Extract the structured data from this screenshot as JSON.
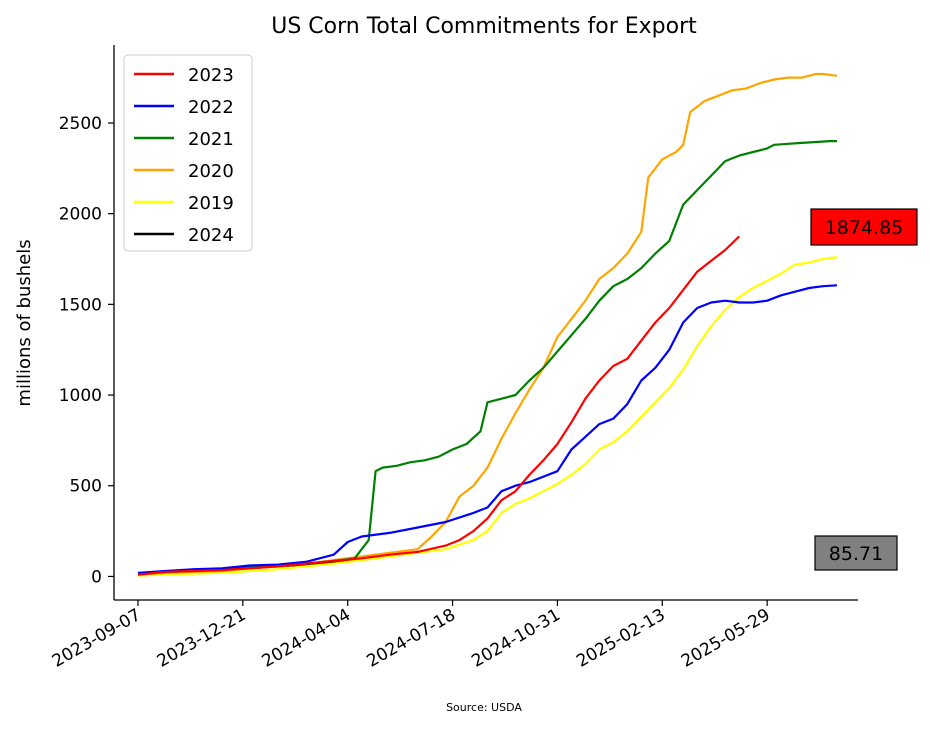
{
  "chart_data": {
    "type": "line",
    "title": "US Corn Total Commitments for Export",
    "xlabel": "",
    "ylabel": "millions of bushels",
    "source": "Source: USDA",
    "x_ticks": [
      "2023-09-07",
      "2023-12-21",
      "2024-04-04",
      "2024-07-18",
      "2024-10-31",
      "2025-02-13",
      "2025-05-29"
    ],
    "y_ticks": [
      0,
      500,
      1000,
      1500,
      2000,
      2500
    ],
    "xlim": [
      "2023-08-14",
      "2025-08-28"
    ],
    "ylim": [
      -130,
      2930
    ],
    "grid": false,
    "legend_position": "top-left",
    "series": [
      {
        "name": "2023",
        "color": "#ff0000",
        "points": [
          [
            "2023-09-07",
            10
          ],
          [
            "2023-10-05",
            25
          ],
          [
            "2023-11-02",
            30
          ],
          [
            "2023-11-30",
            35
          ],
          [
            "2023-12-28",
            45
          ],
          [
            "2024-01-25",
            55
          ],
          [
            "2024-02-22",
            70
          ],
          [
            "2024-03-21",
            85
          ],
          [
            "2024-04-18",
            100
          ],
          [
            "2024-05-16",
            120
          ],
          [
            "2024-06-13",
            135
          ],
          [
            "2024-07-11",
            170
          ],
          [
            "2024-07-25",
            200
          ],
          [
            "2024-08-08",
            250
          ],
          [
            "2024-08-22",
            320
          ],
          [
            "2024-09-05",
            420
          ],
          [
            "2024-09-19",
            470
          ],
          [
            "2024-10-03",
            560
          ],
          [
            "2024-10-17",
            640
          ],
          [
            "2024-10-31",
            730
          ],
          [
            "2024-11-14",
            850
          ],
          [
            "2024-11-28",
            980
          ],
          [
            "2024-12-12",
            1080
          ],
          [
            "2024-12-26",
            1160
          ],
          [
            "2025-01-09",
            1200
          ],
          [
            "2025-01-23",
            1300
          ],
          [
            "2025-02-06",
            1400
          ],
          [
            "2025-02-20",
            1480
          ],
          [
            "2025-03-06",
            1580
          ],
          [
            "2025-03-20",
            1680
          ],
          [
            "2025-04-03",
            1740
          ],
          [
            "2025-04-17",
            1800
          ],
          [
            "2025-05-01",
            1874.85
          ]
        ]
      },
      {
        "name": "2022",
        "color": "#0000ff",
        "points": [
          [
            "2023-09-07",
            20
          ],
          [
            "2023-10-05",
            30
          ],
          [
            "2023-11-02",
            40
          ],
          [
            "2023-11-30",
            45
          ],
          [
            "2023-12-28",
            60
          ],
          [
            "2024-01-25",
            65
          ],
          [
            "2024-02-22",
            80
          ],
          [
            "2024-03-21",
            120
          ],
          [
            "2024-04-04",
            190
          ],
          [
            "2024-04-18",
            220
          ],
          [
            "2024-05-16",
            240
          ],
          [
            "2024-06-13",
            270
          ],
          [
            "2024-07-11",
            300
          ],
          [
            "2024-08-08",
            350
          ],
          [
            "2024-08-22",
            380
          ],
          [
            "2024-09-05",
            470
          ],
          [
            "2024-09-19",
            500
          ],
          [
            "2024-10-03",
            520
          ],
          [
            "2024-10-31",
            580
          ],
          [
            "2024-11-14",
            700
          ],
          [
            "2024-11-28",
            770
          ],
          [
            "2024-12-12",
            840
          ],
          [
            "2024-12-26",
            870
          ],
          [
            "2025-01-09",
            950
          ],
          [
            "2025-01-23",
            1080
          ],
          [
            "2025-02-06",
            1150
          ],
          [
            "2025-02-20",
            1250
          ],
          [
            "2025-03-06",
            1400
          ],
          [
            "2025-03-20",
            1480
          ],
          [
            "2025-04-03",
            1510
          ],
          [
            "2025-04-17",
            1520
          ],
          [
            "2025-05-01",
            1510
          ],
          [
            "2025-05-15",
            1510
          ],
          [
            "2025-05-29",
            1520
          ],
          [
            "2025-06-12",
            1550
          ],
          [
            "2025-06-26",
            1570
          ],
          [
            "2025-07-10",
            1590
          ],
          [
            "2025-07-24",
            1600
          ],
          [
            "2025-08-07",
            1605
          ]
        ]
      },
      {
        "name": "2021",
        "color": "#008000",
        "points": [
          [
            "2023-09-07",
            15
          ],
          [
            "2023-10-05",
            25
          ],
          [
            "2023-11-02",
            30
          ],
          [
            "2023-11-30",
            40
          ],
          [
            "2023-12-28",
            50
          ],
          [
            "2024-01-25",
            60
          ],
          [
            "2024-02-22",
            70
          ],
          [
            "2024-03-21",
            85
          ],
          [
            "2024-04-11",
            100
          ],
          [
            "2024-04-25",
            200
          ],
          [
            "2024-05-02",
            580
          ],
          [
            "2024-05-09",
            600
          ],
          [
            "2024-05-23",
            610
          ],
          [
            "2024-06-06",
            630
          ],
          [
            "2024-06-20",
            640
          ],
          [
            "2024-07-04",
            660
          ],
          [
            "2024-07-18",
            700
          ],
          [
            "2024-08-01",
            730
          ],
          [
            "2024-08-15",
            800
          ],
          [
            "2024-08-22",
            960
          ],
          [
            "2024-09-05",
            980
          ],
          [
            "2024-09-19",
            1000
          ],
          [
            "2024-10-03",
            1080
          ],
          [
            "2024-10-17",
            1150
          ],
          [
            "2024-10-31",
            1240
          ],
          [
            "2024-11-14",
            1330
          ],
          [
            "2024-11-28",
            1420
          ],
          [
            "2024-12-12",
            1520
          ],
          [
            "2024-12-26",
            1600
          ],
          [
            "2025-01-09",
            1640
          ],
          [
            "2025-01-23",
            1700
          ],
          [
            "2025-02-06",
            1780
          ],
          [
            "2025-02-20",
            1850
          ],
          [
            "2025-03-06",
            2050
          ],
          [
            "2025-03-20",
            2130
          ],
          [
            "2025-04-03",
            2210
          ],
          [
            "2025-04-17",
            2290
          ],
          [
            "2025-05-01",
            2320
          ],
          [
            "2025-05-15",
            2340
          ],
          [
            "2025-05-29",
            2360
          ],
          [
            "2025-06-05",
            2380
          ],
          [
            "2025-06-19",
            2385
          ],
          [
            "2025-07-03",
            2390
          ],
          [
            "2025-07-17",
            2395
          ],
          [
            "2025-07-31",
            2400
          ],
          [
            "2025-08-07",
            2400
          ]
        ]
      },
      {
        "name": "2020",
        "color": "#ffa500",
        "points": [
          [
            "2023-09-07",
            10
          ],
          [
            "2023-10-05",
            20
          ],
          [
            "2023-11-02",
            25
          ],
          [
            "2023-11-30",
            30
          ],
          [
            "2023-12-28",
            45
          ],
          [
            "2024-01-25",
            55
          ],
          [
            "2024-02-22",
            70
          ],
          [
            "2024-03-21",
            90
          ],
          [
            "2024-04-18",
            110
          ],
          [
            "2024-05-16",
            130
          ],
          [
            "2024-06-13",
            150
          ],
          [
            "2024-06-27",
            220
          ],
          [
            "2024-07-11",
            300
          ],
          [
            "2024-07-25",
            440
          ],
          [
            "2024-08-08",
            500
          ],
          [
            "2024-08-22",
            600
          ],
          [
            "2024-09-05",
            760
          ],
          [
            "2024-09-19",
            900
          ],
          [
            "2024-10-03",
            1030
          ],
          [
            "2024-10-17",
            1150
          ],
          [
            "2024-10-31",
            1320
          ],
          [
            "2024-11-14",
            1420
          ],
          [
            "2024-11-28",
            1520
          ],
          [
            "2024-12-12",
            1640
          ],
          [
            "2024-12-26",
            1700
          ],
          [
            "2025-01-09",
            1780
          ],
          [
            "2025-01-23",
            1900
          ],
          [
            "2025-01-30",
            2200
          ],
          [
            "2025-02-13",
            2300
          ],
          [
            "2025-02-27",
            2340
          ],
          [
            "2025-03-06",
            2380
          ],
          [
            "2025-03-13",
            2560
          ],
          [
            "2025-03-27",
            2620
          ],
          [
            "2025-04-10",
            2650
          ],
          [
            "2025-04-24",
            2680
          ],
          [
            "2025-05-08",
            2690
          ],
          [
            "2025-05-22",
            2720
          ],
          [
            "2025-06-05",
            2740
          ],
          [
            "2025-06-19",
            2750
          ],
          [
            "2025-07-03",
            2750
          ],
          [
            "2025-07-17",
            2770
          ],
          [
            "2025-07-24",
            2770
          ],
          [
            "2025-08-07",
            2760
          ]
        ]
      },
      {
        "name": "2019",
        "color": "#ffff00",
        "points": [
          [
            "2023-09-07",
            5
          ],
          [
            "2023-10-05",
            10
          ],
          [
            "2023-11-02",
            15
          ],
          [
            "2023-11-30",
            20
          ],
          [
            "2023-12-28",
            30
          ],
          [
            "2024-01-25",
            40
          ],
          [
            "2024-02-22",
            55
          ],
          [
            "2024-03-21",
            70
          ],
          [
            "2024-04-18",
            90
          ],
          [
            "2024-05-16",
            110
          ],
          [
            "2024-06-13",
            130
          ],
          [
            "2024-07-11",
            150
          ],
          [
            "2024-08-08",
            200
          ],
          [
            "2024-08-22",
            250
          ],
          [
            "2024-09-05",
            350
          ],
          [
            "2024-09-19",
            400
          ],
          [
            "2024-10-03",
            430
          ],
          [
            "2024-10-17",
            470
          ],
          [
            "2024-10-31",
            510
          ],
          [
            "2024-11-14",
            560
          ],
          [
            "2024-11-28",
            620
          ],
          [
            "2024-12-12",
            700
          ],
          [
            "2024-12-26",
            740
          ],
          [
            "2025-01-09",
            800
          ],
          [
            "2025-01-23",
            880
          ],
          [
            "2025-02-06",
            960
          ],
          [
            "2025-02-20",
            1040
          ],
          [
            "2025-03-06",
            1140
          ],
          [
            "2025-03-20",
            1270
          ],
          [
            "2025-04-03",
            1380
          ],
          [
            "2025-04-17",
            1470
          ],
          [
            "2025-05-01",
            1540
          ],
          [
            "2025-05-15",
            1590
          ],
          [
            "2025-05-29",
            1630
          ],
          [
            "2025-06-12",
            1670
          ],
          [
            "2025-06-26",
            1720
          ],
          [
            "2025-07-10",
            1730
          ],
          [
            "2025-07-24",
            1750
          ],
          [
            "2025-08-07",
            1760
          ]
        ]
      },
      {
        "name": "2024",
        "color": "#000000",
        "points": [
          [
            "2023-09-07",
            5
          ],
          [
            "2023-09-21",
            10
          ],
          [
            "2023-10-05",
            25
          ],
          [
            "2023-11-02",
            30
          ],
          [
            "2023-11-30",
            35
          ],
          [
            "2023-12-28",
            45
          ],
          [
            "2024-01-25",
            55
          ],
          [
            "2024-02-22",
            65
          ],
          [
            "2024-03-21",
            75
          ],
          [
            "2024-04-11",
            85.71
          ]
        ]
      }
    ],
    "annotations": [
      {
        "text": "1874.85",
        "value": 1874.85,
        "box_color": "#ff0000"
      },
      {
        "text": "85.71",
        "value": 85.71,
        "box_color": "#808080"
      }
    ]
  }
}
